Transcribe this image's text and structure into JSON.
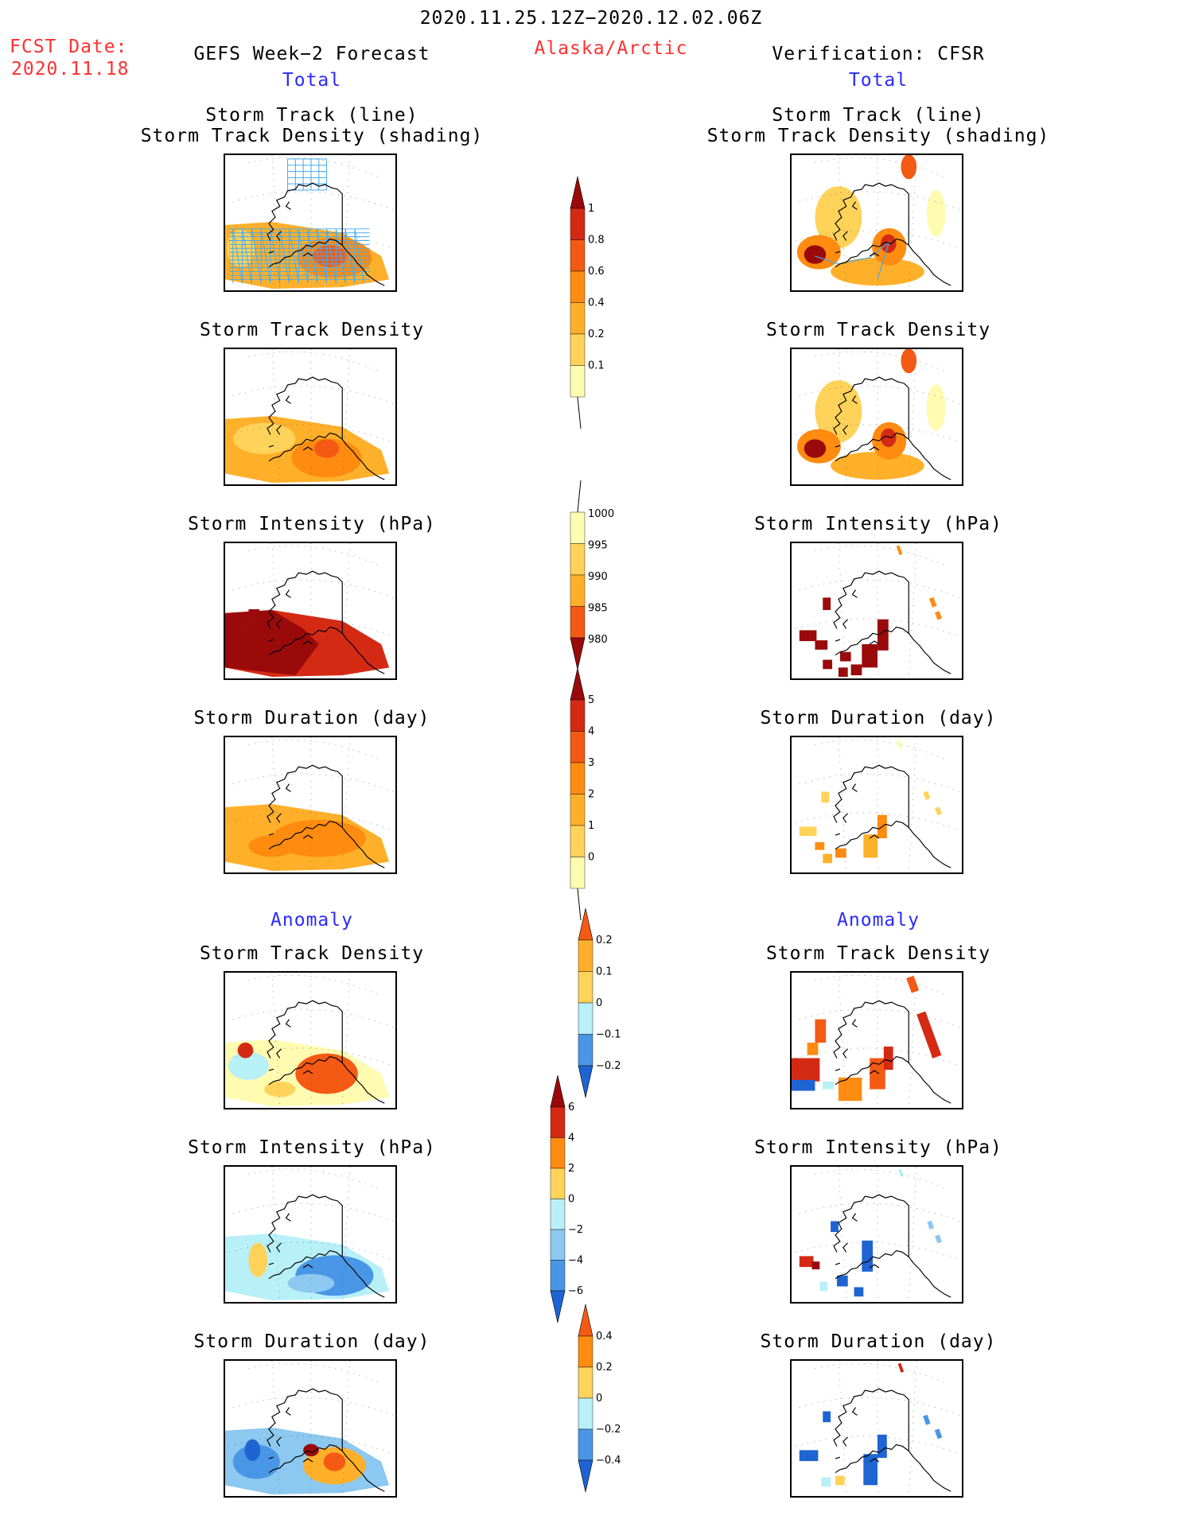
{
  "header": {
    "valid_period": "2020.11.25.12Z−2020.12.02.06Z",
    "fcst_label": "FCST Date:",
    "fcst_date": "2020.11.18",
    "left_title": "GEFS Week−2 Forecast",
    "region": "Alaska/Arctic",
    "right_title": "Verification: CFSR",
    "total_label_left": "Total",
    "total_label_right": "Total",
    "anomaly_label_left": "Anomaly",
    "anomaly_label_right": "Anomaly"
  },
  "panel_titles": {
    "track_line": "Storm Track (line)",
    "track_shading": "Storm Track Density (shading)",
    "density": "Storm Track Density",
    "intensity": "Storm Intensity (hPa)",
    "duration": "Storm Duration (day)"
  },
  "colors": {
    "c1": "#fffbb0",
    "c2": "#ffd35a",
    "c3": "#ffb02a",
    "c4": "#ff8c10",
    "c5": "#f45a14",
    "c6": "#d42a14",
    "c7": "#9a0a0a",
    "b1": "#b8f0f8",
    "b2": "#8cc8f0",
    "b3": "#4a96e6",
    "b4": "#1e64d2",
    "track_line": "#44aaee"
  },
  "colorbars": [
    {
      "id": "track_density_total",
      "labels": [
        "1",
        "0.8",
        "0.6",
        "0.4",
        "0.2",
        "0.1"
      ]
    },
    {
      "id": "intensity_total",
      "labels": [
        "1000",
        "995",
        "990",
        "985",
        "980"
      ]
    },
    {
      "id": "duration_total",
      "labels": [
        "5",
        "4",
        "3",
        "2",
        "1",
        "0"
      ]
    },
    {
      "id": "track_density_anom",
      "labels": [
        "0.2",
        "0.1",
        "0",
        "−0.1",
        "−0.2"
      ]
    },
    {
      "id": "intensity_anom",
      "labels": [
        "6",
        "4",
        "2",
        "0",
        "−2",
        "−4",
        "−6"
      ]
    },
    {
      "id": "duration_anom",
      "labels": [
        "0.4",
        "0.2",
        "0",
        "−0.2",
        "−0.4"
      ]
    }
  ]
}
